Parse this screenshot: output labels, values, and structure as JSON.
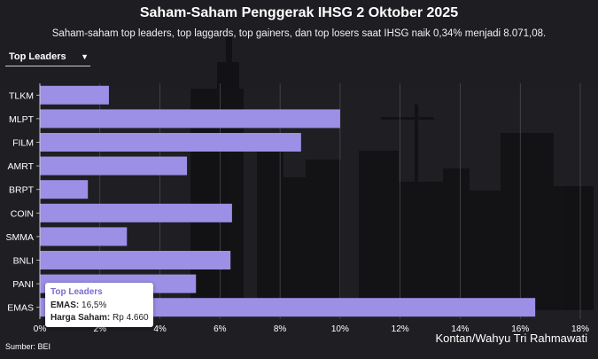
{
  "header": {
    "title": "Saham-Saham Penggerak IHSG 2 Oktober 2025",
    "subtitle": "Saham-saham top leaders, top laggards, top gainers, dan top losers saat IHSG naik 0,34% menjadi 8.071,08."
  },
  "dropdown": {
    "selected": "Top Leaders"
  },
  "footer": {
    "source": "Sumber: BEI",
    "credit": "Kontan/Wahyu Tri Rahmawati"
  },
  "tooltip": {
    "header": "Top Leaders",
    "name_label": "EMAS:",
    "name_value": "16,5%",
    "price_label": "Harga Saham:",
    "price_value": "Rp 4.660"
  },
  "colors": {
    "bar": "#9b8fe6",
    "background": "#1e1d21",
    "tooltip_accent": "#7a6bd1"
  },
  "chart_data": {
    "type": "bar",
    "orientation": "horizontal",
    "categories": [
      "TLKM",
      "MLPT",
      "FILM",
      "AMRT",
      "BRPT",
      "COIN",
      "SMMA",
      "BNLI",
      "PANI",
      "EMAS"
    ],
    "values": [
      2.3,
      10.0,
      8.7,
      4.9,
      1.6,
      6.4,
      2.9,
      6.35,
      5.2,
      16.5
    ],
    "xlim": [
      0,
      18
    ],
    "x_ticks": [
      "0%",
      "2%",
      "4%",
      "6%",
      "8%",
      "10%",
      "12%",
      "14%",
      "16%",
      "18%"
    ],
    "title": "Saham-Saham Penggerak IHSG 2 Oktober 2025",
    "grid": true,
    "legend": "none"
  }
}
